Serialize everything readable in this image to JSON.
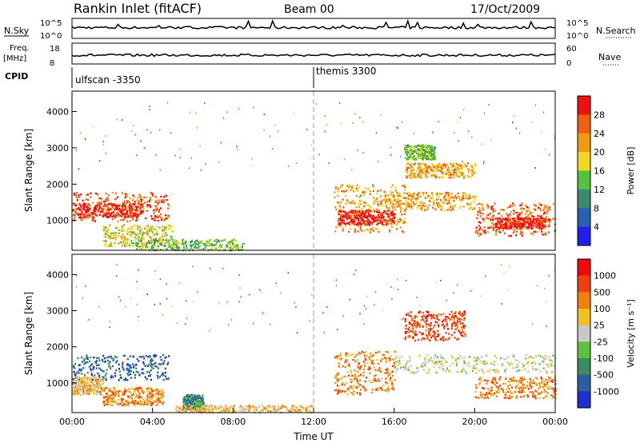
{
  "header": {
    "station": "Rankin Inlet (fitACF)",
    "beam": "Beam 00",
    "date": "17/Oct/2009"
  },
  "strip_labels": {
    "nsky": "N.Sky",
    "nsky_ticks": [
      "10^5",
      "10^0"
    ],
    "nsearch": "N.Search",
    "freq": "Freq.",
    "freq_unit": "[MHz]",
    "freq_ticks": [
      "18",
      "8"
    ],
    "nave": "Nave",
    "nave_ticks": [
      "60",
      "0"
    ],
    "cpid": "CPID",
    "nsearch_ticks": [
      "10^5",
      "10^0"
    ]
  },
  "cpid_segments": [
    {
      "label": "ulfscan -3350",
      "start_hour": 0
    },
    {
      "label": "themis 3300",
      "start_hour": 12
    }
  ],
  "chart_data": [
    {
      "type": "heatmap",
      "panel": "power",
      "xlabel": "",
      "ylabel": "Slant Range [km]",
      "yticks": [
        1000,
        2000,
        3000,
        4000
      ],
      "ylim": [
        180,
        4560
      ],
      "xlim_hours": [
        0,
        24
      ],
      "colorbar": {
        "label": "Power [dB]",
        "ticks": [
          "4",
          "8",
          "12",
          "16",
          "20",
          "24",
          "28"
        ],
        "colors": [
          "#1f20f0",
          "#2a60b0",
          "#3c8a70",
          "#56c040",
          "#f0d820",
          "#f09a10",
          "#f06010",
          "#f01010"
        ]
      },
      "regions": [
        {
          "h0": 0.0,
          "h1": 4.8,
          "r0": 1000,
          "r1": 1800,
          "level": 6
        },
        {
          "h0": 0.0,
          "h1": 3.5,
          "r0": 1100,
          "r1": 1500,
          "level": 7
        },
        {
          "h0": 1.5,
          "h1": 5.0,
          "r0": 300,
          "r1": 900,
          "level": 4
        },
        {
          "h0": 3.0,
          "h1": 8.5,
          "r0": 200,
          "r1": 500,
          "level": 3
        },
        {
          "h0": 13.0,
          "h1": 16.5,
          "r0": 700,
          "r1": 2000,
          "level": 5
        },
        {
          "h0": 13.2,
          "h1": 16.0,
          "r0": 900,
          "r1": 1300,
          "level": 7
        },
        {
          "h0": 15.5,
          "h1": 20.0,
          "r0": 1300,
          "r1": 1800,
          "level": 5
        },
        {
          "h0": 16.5,
          "h1": 20.0,
          "r0": 2200,
          "r1": 2600,
          "level": 5
        },
        {
          "h0": 16.5,
          "h1": 18.0,
          "r0": 2700,
          "r1": 3100,
          "level": 3
        },
        {
          "h0": 20.0,
          "h1": 24.0,
          "r0": 600,
          "r1": 1500,
          "level": 6
        },
        {
          "h0": 21.0,
          "h1": 23.5,
          "r0": 800,
          "r1": 1100,
          "level": 7
        }
      ]
    },
    {
      "type": "heatmap",
      "panel": "velocity",
      "xlabel": "Time UT",
      "ylabel": "Slant Range [km]",
      "yticks": [
        1000,
        2000,
        3000,
        4000
      ],
      "ylim": [
        180,
        4560
      ],
      "xlim_hours": [
        0,
        24
      ],
      "xticks": [
        "00:00",
        "04:00",
        "08:00",
        "12:00",
        "16:00",
        "20:00",
        "00:00"
      ],
      "colorbar": {
        "label": "Velocity [m s⁻¹]",
        "ticks": [
          "1000",
          "500",
          "100",
          "25",
          "-25",
          "-100",
          "-500",
          "-1000"
        ],
        "colors": [
          "#2030d0",
          "#2a60a0",
          "#3c8a60",
          "#60c040",
          "#c8c8c8",
          "#f0c020",
          "#f08010",
          "#f04010",
          "#f00a0a"
        ]
      },
      "regions": [
        {
          "h0": 0.0,
          "h1": 4.8,
          "r0": 1100,
          "r1": 1800,
          "level": 1
        },
        {
          "h0": 0.0,
          "h1": 1.5,
          "r0": 700,
          "r1": 1200,
          "level": 5
        },
        {
          "h0": 1.5,
          "h1": 4.5,
          "r0": 400,
          "r1": 900,
          "level": 6
        },
        {
          "h0": 5.5,
          "h1": 6.5,
          "r0": 300,
          "r1": 700,
          "level": 2
        },
        {
          "h0": 5.0,
          "h1": 12.0,
          "r0": 200,
          "r1": 400,
          "level": 5
        },
        {
          "h0": 13.0,
          "h1": 16.0,
          "r0": 700,
          "r1": 1900,
          "level": 6
        },
        {
          "h0": 16.0,
          "h1": 24.0,
          "r0": 1300,
          "r1": 1800,
          "level": 4
        },
        {
          "h0": 16.5,
          "h1": 19.5,
          "r0": 2200,
          "r1": 3000,
          "level": 7
        },
        {
          "h0": 20.0,
          "h1": 24.0,
          "r0": 600,
          "r1": 1200,
          "level": 6
        }
      ]
    }
  ]
}
